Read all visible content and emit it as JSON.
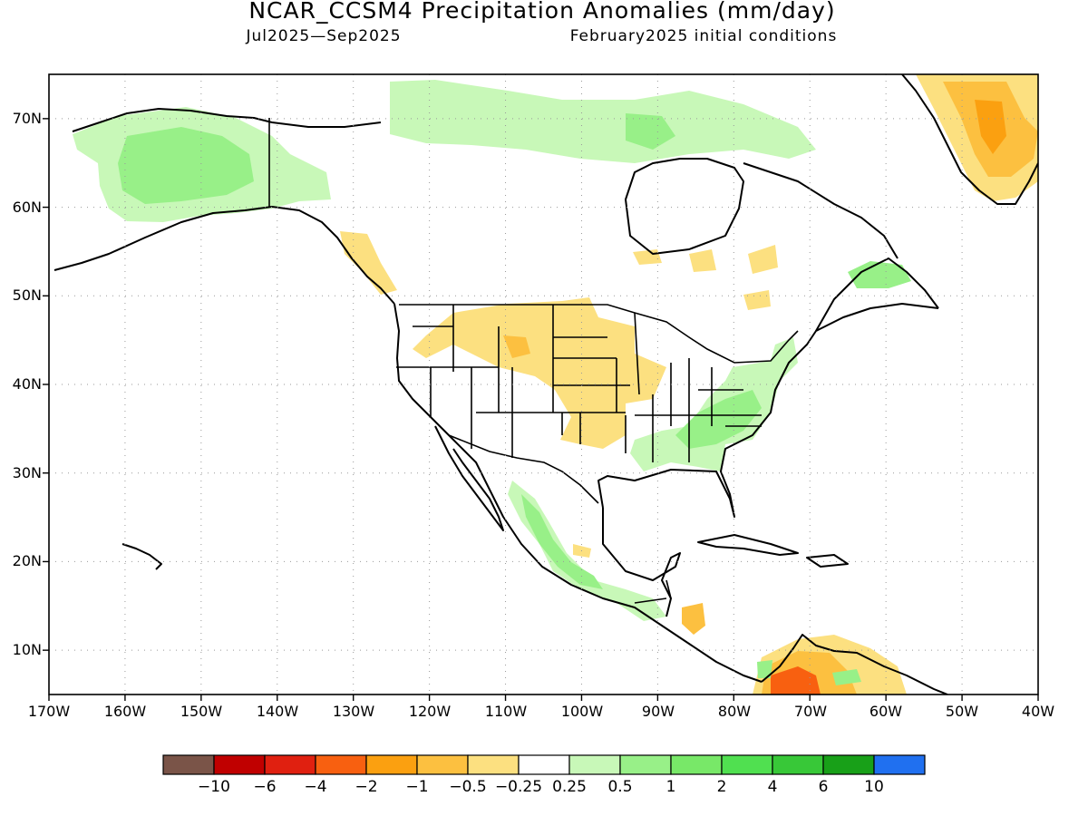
{
  "header": {
    "title": "NCAR_CCSM4 Precipitation Anomalies (mm/day)",
    "period": "Jul2025—Sep2025",
    "initial_conditions": "February2025 initial conditions"
  },
  "map": {
    "projection": "cylindrical equidistant",
    "lon_range": [
      -170,
      -40
    ],
    "lat_range": [
      5,
      75
    ],
    "lat_labels": [
      "10N",
      "20N",
      "30N",
      "40N",
      "50N",
      "60N",
      "70N"
    ],
    "lon_labels": [
      "170W",
      "160W",
      "150W",
      "140W",
      "130W",
      "120W",
      "110W",
      "100W",
      "90W",
      "80W",
      "70W",
      "60W",
      "50W",
      "40W"
    ],
    "grid": "dotted at 10 degree intervals"
  },
  "legend": {
    "labels": [
      "−10",
      "−6",
      "−4",
      "−2",
      "−1",
      "−0.5",
      "−0.25",
      "0.25",
      "0.5",
      "1",
      "2",
      "4",
      "6",
      "10"
    ],
    "colors": [
      "#7a5448",
      "#c00000",
      "#e02010",
      "#f86010",
      "#fba010",
      "#fcc040",
      "#fce080",
      "#ffffff",
      "#c8f8b8",
      "#98f088",
      "#78e868",
      "#50e050",
      "#38c838",
      "#18a018",
      "#2070f0"
    ]
  }
}
